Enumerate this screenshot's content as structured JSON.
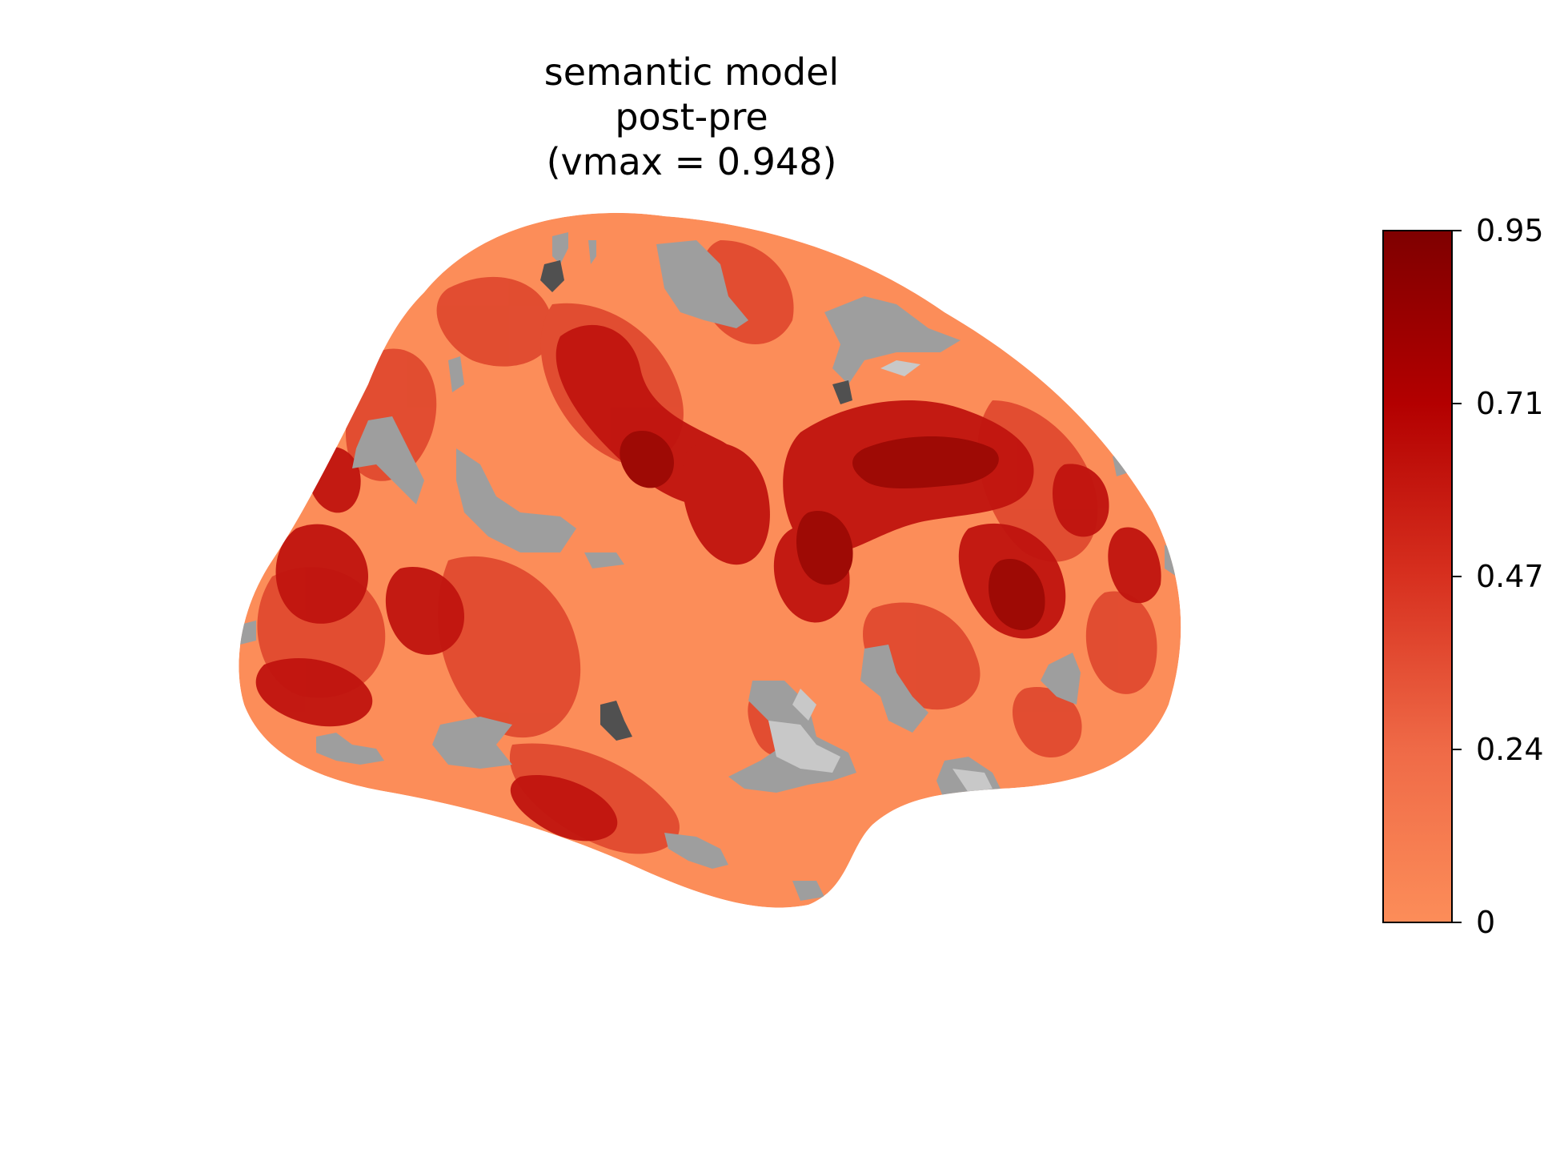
{
  "figure": {
    "title_lines": [
      "semantic model",
      "post-pre",
      "(vmax = 0.948)"
    ]
  },
  "colorbar": {
    "vmin": 0,
    "vmax": 0.948,
    "tick_labels": [
      "0",
      "0.24",
      "0.47",
      "0.71",
      "0.95"
    ],
    "colormap": "Reds",
    "color_low": "#fc8d59",
    "color_high": "#7f0000"
  },
  "surface": {
    "view": "lateral left hemisphere",
    "base_color": "#fc8d59",
    "subthreshold_color": "#9e9e9e",
    "dark_shade": "#c0140f",
    "mid_shade": "#e04a2f",
    "peak_shade": "#9e0a05"
  }
}
